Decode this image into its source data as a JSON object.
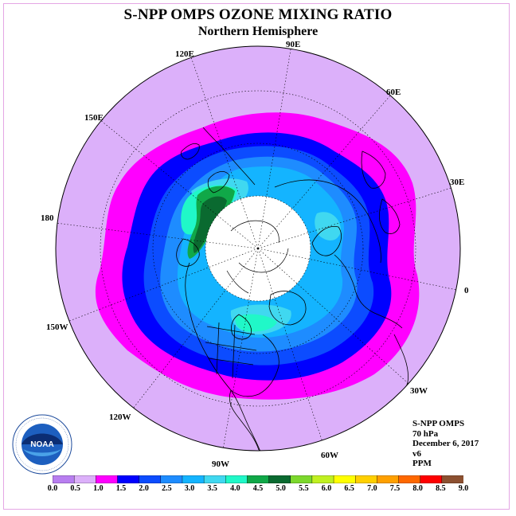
{
  "header": {
    "title": "S-NPP OMPS OZONE MIXING RATIO",
    "subtitle": "Northern Hemisphere"
  },
  "map": {
    "projection": "north-polar-stereographic",
    "longitude_labels": [
      "90E",
      "60E",
      "30E",
      "0",
      "30W",
      "60W",
      "90W",
      "120W",
      "150W",
      "180",
      "150E",
      "120E"
    ],
    "no_data_region": "polar-cap",
    "contour_levels_ppm": [
      0.0,
      0.5,
      1.0,
      1.5,
      2.0,
      2.5,
      3.0,
      3.5,
      4.0,
      4.5,
      5.0,
      5.5,
      6.0,
      6.5,
      7.0,
      7.5,
      8.0,
      8.5,
      9.0
    ]
  },
  "info": {
    "instrument": "S-NPP OMPS",
    "level": "70 hPa",
    "date": "December 6, 2017",
    "version": "v6",
    "units": "PPM"
  },
  "colorbar": {
    "labels": [
      "0.0",
      "0.5",
      "1.0",
      "1.5",
      "2.0",
      "2.5",
      "3.0",
      "3.5",
      "4.0",
      "4.5",
      "5.0",
      "5.5",
      "6.0",
      "6.5",
      "7.0",
      "7.5",
      "8.0",
      "8.5",
      "9.0"
    ],
    "colors": [
      "#b87ef0",
      "#dcb0fa",
      "#ff00ff",
      "#0000ff",
      "#0c4cff",
      "#1e8cff",
      "#14b4ff",
      "#40d8f0",
      "#20f8c8",
      "#10a848",
      "#0a6a30",
      "#7cd82c",
      "#c0f020",
      "#ffff00",
      "#ffd000",
      "#ffa000",
      "#ff6800",
      "#ff0000",
      "#8c5030"
    ]
  },
  "logo": {
    "text": "NOAA",
    "ring_text": "NATIONAL OCEANIC AND ATMOSPHERIC ADMINISTRATION · U.S. DEPARTMENT OF COMMERCE"
  }
}
